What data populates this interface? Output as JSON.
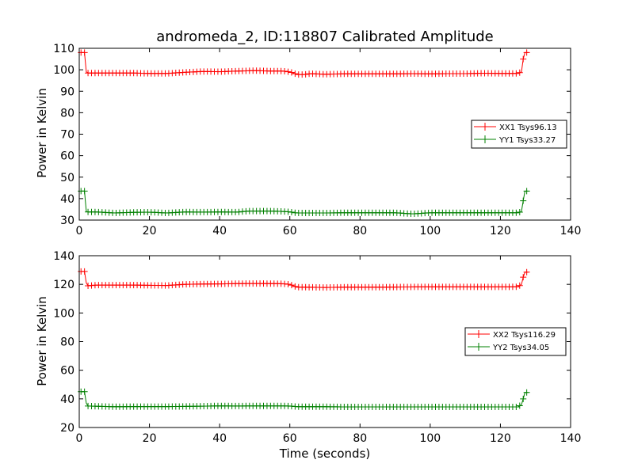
{
  "chart_data": [
    {
      "type": "line",
      "title": "andromeda_2, ID:118807 Calibrated Amplitude",
      "xlabel": "",
      "ylabel": "Power in Kelvin",
      "xlim": [
        0,
        140
      ],
      "ylim": [
        30,
        110
      ],
      "xticks": [
        "0",
        "20",
        "40",
        "60",
        "80",
        "100",
        "120",
        "140"
      ],
      "yticks": [
        "30",
        "40",
        "50",
        "60",
        "70",
        "80",
        "90",
        "100",
        "110"
      ],
      "grid": false,
      "legend_position": "center-right",
      "series": [
        {
          "name": "XX1 Tsys96.13",
          "color": "#ff0000",
          "points": [
            [
              0.5,
              108
            ],
            [
              1,
              108
            ],
            [
              1.5,
              108
            ],
            [
              2,
              99
            ],
            [
              2.5,
              98.5
            ],
            [
              5,
              98.5
            ],
            [
              10,
              98.5
            ],
            [
              15,
              98.5
            ],
            [
              20,
              98.3
            ],
            [
              25,
              98.3
            ],
            [
              30,
              98.8
            ],
            [
              35,
              99.2
            ],
            [
              40,
              99.1
            ],
            [
              45,
              99.4
            ],
            [
              50,
              99.6
            ],
            [
              55,
              99.4
            ],
            [
              58,
              99.4
            ],
            [
              60,
              99
            ],
            [
              61,
              98.5
            ],
            [
              62,
              97.8
            ],
            [
              64,
              97.8
            ],
            [
              66,
              98.2
            ],
            [
              70,
              97.9
            ],
            [
              75,
              98.1
            ],
            [
              80,
              98.1
            ],
            [
              85,
              98.1
            ],
            [
              90,
              98.1
            ],
            [
              95,
              98.2
            ],
            [
              100,
              98.1
            ],
            [
              105,
              98.2
            ],
            [
              110,
              98.2
            ],
            [
              115,
              98.4
            ],
            [
              120,
              98.3
            ],
            [
              125,
              98.3
            ],
            [
              126,
              99
            ],
            [
              126.5,
              105
            ],
            [
              127,
              108
            ],
            [
              127.5,
              108
            ],
            [
              128,
              108
            ]
          ]
        },
        {
          "name": "YY1 Tsys33.27",
          "color": "#008000",
          "points": [
            [
              0.5,
              43.5
            ],
            [
              1,
              43.5
            ],
            [
              1.5,
              43.5
            ],
            [
              2,
              34
            ],
            [
              2.5,
              33.8
            ],
            [
              5,
              33.8
            ],
            [
              10,
              33.3
            ],
            [
              15,
              33.6
            ],
            [
              20,
              33.7
            ],
            [
              25,
              33.3
            ],
            [
              30,
              33.8
            ],
            [
              35,
              33.7
            ],
            [
              40,
              33.8
            ],
            [
              45,
              33.7
            ],
            [
              48,
              34.2
            ],
            [
              52,
              34.2
            ],
            [
              55,
              34.2
            ],
            [
              58,
              34
            ],
            [
              60,
              33.8
            ],
            [
              62,
              33.3
            ],
            [
              65,
              33.3
            ],
            [
              70,
              33.3
            ],
            [
              75,
              33.4
            ],
            [
              80,
              33.4
            ],
            [
              85,
              33.4
            ],
            [
              90,
              33.4
            ],
            [
              95,
              32.9
            ],
            [
              100,
              33.4
            ],
            [
              105,
              33.4
            ],
            [
              110,
              33.4
            ],
            [
              115,
              33.4
            ],
            [
              120,
              33.4
            ],
            [
              125,
              33.4
            ],
            [
              126,
              34
            ],
            [
              126.5,
              39
            ],
            [
              127,
              43.5
            ],
            [
              127.5,
              43.5
            ],
            [
              128,
              43.5
            ]
          ]
        }
      ]
    },
    {
      "type": "line",
      "title": "",
      "xlabel": "Time (seconds)",
      "ylabel": "Power in Kelvin",
      "xlim": [
        0,
        140
      ],
      "ylim": [
        20,
        140
      ],
      "xticks": [
        "0",
        "20",
        "40",
        "60",
        "80",
        "100",
        "120",
        "140"
      ],
      "yticks": [
        "20",
        "40",
        "60",
        "80",
        "100",
        "120",
        "140"
      ],
      "grid": false,
      "legend_position": "center-right",
      "series": [
        {
          "name": "XX2 Tsys116.29",
          "color": "#ff0000",
          "points": [
            [
              0.5,
              129
            ],
            [
              1,
              129
            ],
            [
              1.5,
              129
            ],
            [
              2,
              121
            ],
            [
              2.5,
              119
            ],
            [
              5,
              119.5
            ],
            [
              10,
              119.5
            ],
            [
              15,
              119.5
            ],
            [
              20,
              119.3
            ],
            [
              25,
              119.2
            ],
            [
              30,
              120
            ],
            [
              35,
              120.2
            ],
            [
              40,
              120.3
            ],
            [
              45,
              120.5
            ],
            [
              50,
              120.6
            ],
            [
              55,
              120.5
            ],
            [
              58,
              120.4
            ],
            [
              60,
              120
            ],
            [
              61,
              119
            ],
            [
              62,
              118
            ],
            [
              65,
              118
            ],
            [
              70,
              117.8
            ],
            [
              75,
              118
            ],
            [
              80,
              118
            ],
            [
              85,
              118
            ],
            [
              90,
              118.1
            ],
            [
              95,
              118.2
            ],
            [
              100,
              118.2
            ],
            [
              105,
              118.2
            ],
            [
              110,
              118.2
            ],
            [
              115,
              118.2
            ],
            [
              120,
              118.2
            ],
            [
              125,
              118.3
            ],
            [
              126,
              120
            ],
            [
              126.5,
              125
            ],
            [
              127,
              128.5
            ],
            [
              127.5,
              128.5
            ],
            [
              128,
              128.5
            ]
          ]
        },
        {
          "name": "YY2 Tsys34.05",
          "color": "#008000",
          "points": [
            [
              0.5,
              45
            ],
            [
              1,
              45
            ],
            [
              1.5,
              45
            ],
            [
              2,
              37
            ],
            [
              2.5,
              35
            ],
            [
              5,
              34.8
            ],
            [
              10,
              34.5
            ],
            [
              15,
              34.6
            ],
            [
              20,
              34.6
            ],
            [
              25,
              34.6
            ],
            [
              30,
              34.7
            ],
            [
              35,
              34.9
            ],
            [
              40,
              35.1
            ],
            [
              45,
              35
            ],
            [
              50,
              35.1
            ],
            [
              55,
              35.1
            ],
            [
              58,
              35.1
            ],
            [
              60,
              35
            ],
            [
              62,
              34.5
            ],
            [
              65,
              34.5
            ],
            [
              70,
              34.5
            ],
            [
              75,
              34.4
            ],
            [
              80,
              34.4
            ],
            [
              85,
              34.4
            ],
            [
              90,
              34.4
            ],
            [
              95,
              34.4
            ],
            [
              100,
              34.4
            ],
            [
              105,
              34.4
            ],
            [
              110,
              34.4
            ],
            [
              115,
              34.4
            ],
            [
              120,
              34.4
            ],
            [
              125,
              34.4
            ],
            [
              126,
              36
            ],
            [
              126.5,
              40
            ],
            [
              127,
              44.5
            ],
            [
              127.5,
              44.5
            ],
            [
              128,
              44.5
            ]
          ]
        }
      ]
    }
  ]
}
